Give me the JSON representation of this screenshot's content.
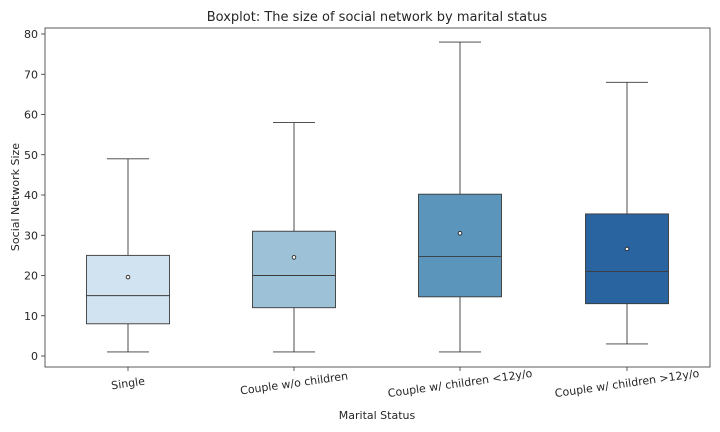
{
  "chart_data": {
    "type": "boxplot",
    "title": "Boxplot: The size of social network by marital status",
    "xlabel": "Marital Status",
    "ylabel": "Social Network Size",
    "ylim": [
      -2.5,
      82
    ],
    "yticks": [
      0,
      10,
      20,
      30,
      40,
      50,
      60,
      70,
      80
    ],
    "categories": [
      "Single",
      "Couple w/o children",
      "Couple w/ children <12y/o",
      "Couple w/ children >12y/o"
    ],
    "boxes": [
      {
        "whisker_low": 1,
        "q1": 8,
        "median": 15,
        "q3": 25,
        "whisker_high": 49,
        "mean": 19.6
      },
      {
        "whisker_low": 1,
        "q1": 12,
        "median": 20,
        "q3": 31,
        "whisker_high": 58,
        "mean": 24.5
      },
      {
        "whisker_low": 1,
        "q1": 14.7,
        "median": 24.7,
        "q3": 40.2,
        "whisker_high": 78,
        "mean": 30.5
      },
      {
        "whisker_low": 3,
        "q1": 13,
        "median": 21,
        "q3": 35.3,
        "whisker_high": 68,
        "mean": 26.6
      }
    ],
    "colors": [
      "#d1e2f0",
      "#9dc2d8",
      "#5c95bb",
      "#2a64a0"
    ],
    "grid": false,
    "legend": "none"
  }
}
